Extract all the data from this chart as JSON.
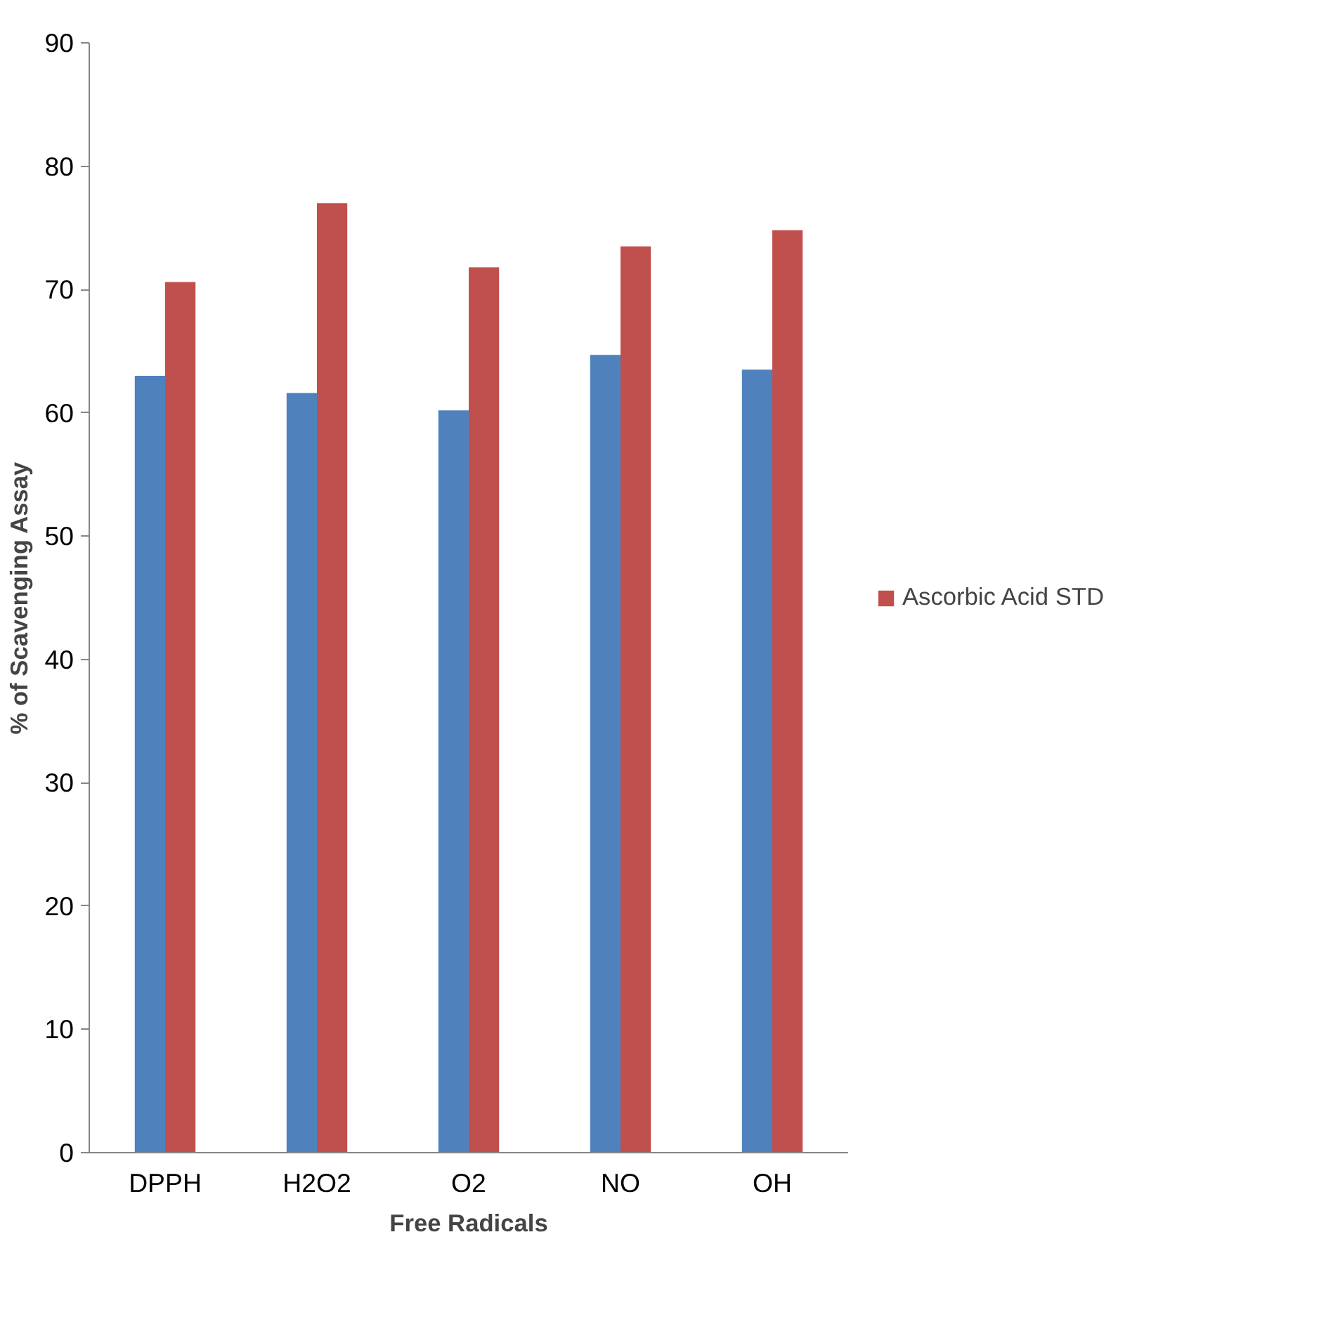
{
  "chart_data": {
    "type": "bar",
    "xlabel": "Free Radicals",
    "ylabel": "% of Scavenging Assay",
    "categories": [
      "DPPH",
      "H2O2",
      "O2",
      "NO",
      "OH"
    ],
    "series": [
      {
        "color": "#4f81bd",
        "values": [
          63.0,
          61.6,
          60.2,
          64.7,
          63.5
        ]
      },
      {
        "name": "Ascorbic Acid STD",
        "color": "#c0504d",
        "values": [
          70.6,
          77.0,
          71.8,
          73.5,
          74.8
        ]
      }
    ],
    "ylim": [
      0,
      90
    ],
    "yticks": [
      0,
      10,
      20,
      30,
      40,
      50,
      60,
      70,
      80,
      90
    ],
    "grid": false,
    "legend": "right"
  }
}
